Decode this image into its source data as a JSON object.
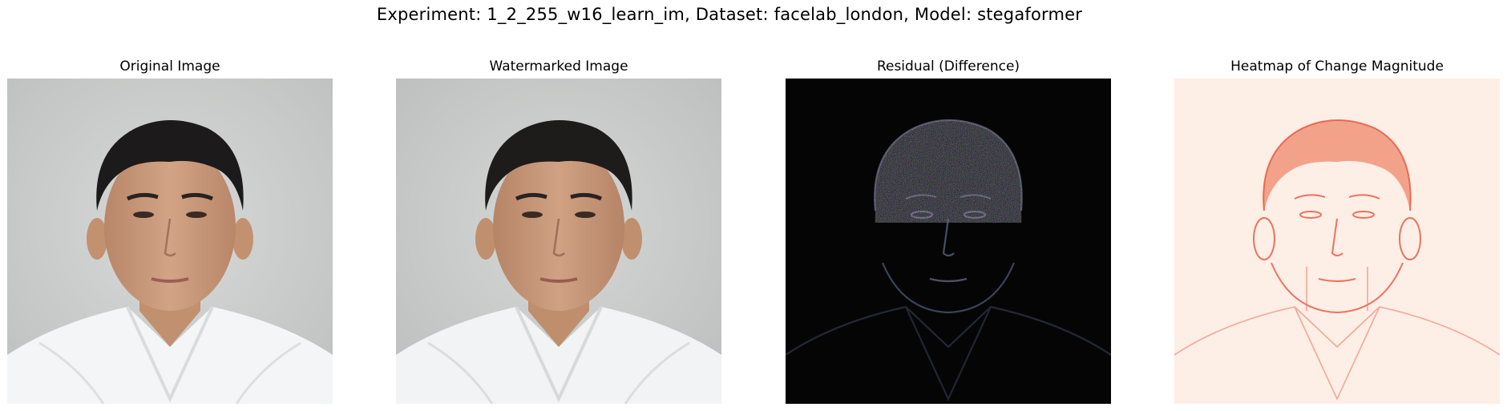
{
  "figure": {
    "suptitle": "Experiment: 1_2_255_w16_learn_im, Dataset: facelab_london, Model: stegaformer"
  },
  "panels": [
    {
      "title": "Original Image",
      "kind": "photo"
    },
    {
      "title": "Watermarked Image",
      "kind": "photo"
    },
    {
      "title": "Residual (Difference)",
      "kind": "residual"
    },
    {
      "title": "Heatmap of Change Magnitude",
      "kind": "heatmap"
    }
  ],
  "colors": {
    "background_photo": "#cfd1d0",
    "skin": "#c89a7c",
    "hair": "#1c1a1a",
    "shirt": "#f4f5f6",
    "residual_bg": "#050505",
    "heatmap_bg": "#fdeee6",
    "heatmap_line": "#e8543a"
  }
}
